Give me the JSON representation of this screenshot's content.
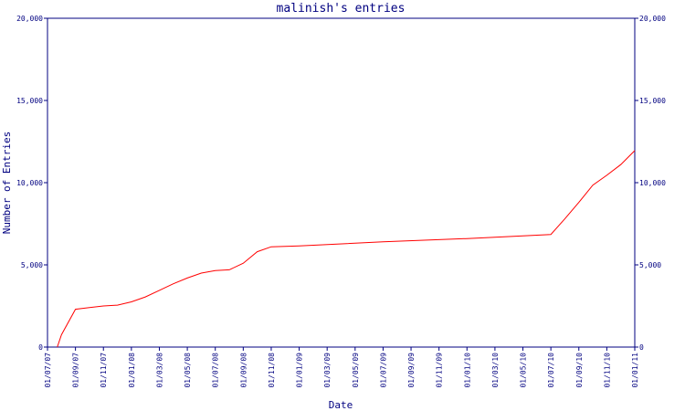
{
  "chart_data": {
    "type": "line",
    "title": "malinish's entries",
    "xlabel": "Date",
    "ylabel": "Number of Entries",
    "x": [
      "22/07/07",
      "01/08/07",
      "01/09/07",
      "01/10/07",
      "01/11/07",
      "01/12/07",
      "01/01/08",
      "01/02/08",
      "01/03/08",
      "01/04/08",
      "01/05/08",
      "01/06/08",
      "01/07/08",
      "01/08/08",
      "01/09/08",
      "01/10/08",
      "01/11/08",
      "01/01/09",
      "01/07/09",
      "01/01/10",
      "01/07/10",
      "01/08/10",
      "01/09/10",
      "01/10/10",
      "01/11/10",
      "01/12/10",
      "01/01/11"
    ],
    "series": [
      {
        "name": "malinish",
        "color": "#ff0000",
        "values": [
          0,
          750,
          2300,
          2400,
          2500,
          2550,
          2750,
          3050,
          3450,
          3850,
          4200,
          4500,
          4650,
          4700,
          5100,
          5800,
          6100,
          6150,
          6400,
          6600,
          6850,
          7800,
          8800,
          9850,
          10450,
          11100,
          11950
        ]
      }
    ],
    "xlim": [
      "01/07/07",
      "01/01/11"
    ],
    "xticks": [
      "01/07/07",
      "01/09/07",
      "01/11/07",
      "01/01/08",
      "01/03/08",
      "01/05/08",
      "01/07/08",
      "01/09/08",
      "01/11/08",
      "01/01/09",
      "01/03/09",
      "01/05/09",
      "01/07/09",
      "01/09/09",
      "01/11/09",
      "01/01/10",
      "01/03/10",
      "01/05/10",
      "01/07/10",
      "01/09/10",
      "01/11/10",
      "01/01/11"
    ],
    "ylim": [
      0,
      20000
    ],
    "yticks": [
      0,
      {
        "value": 5000,
        "label": "5,000"
      },
      {
        "value": 10000,
        "label": "10,000"
      },
      {
        "value": 15000,
        "label": "15,000"
      },
      {
        "value": 20000,
        "label": "20,000"
      }
    ],
    "axis_color": "#000080"
  }
}
